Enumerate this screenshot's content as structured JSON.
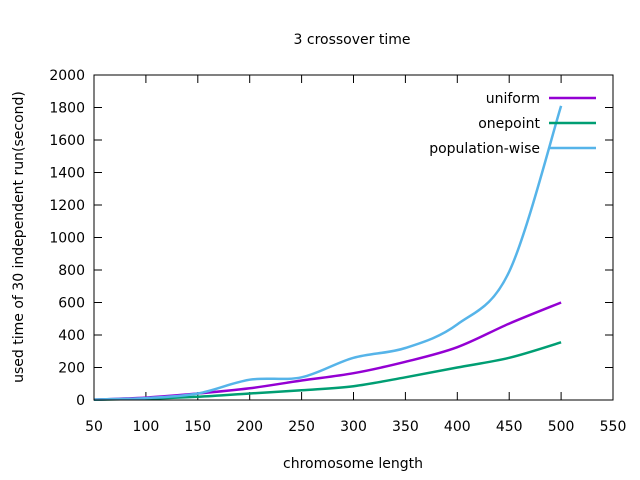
{
  "chart_data": {
    "type": "line",
    "title": "3 crossover time",
    "xlabel": "chromosome length",
    "ylabel": "used time of 30 independent run(second)",
    "xlim": [
      50,
      550
    ],
    "ylim": [
      0,
      2000
    ],
    "x_ticks": [
      50,
      100,
      150,
      200,
      250,
      300,
      350,
      400,
      450,
      500,
      550
    ],
    "y_ticks": [
      0,
      200,
      400,
      600,
      800,
      1000,
      1200,
      1400,
      1600,
      1800,
      2000
    ],
    "legend_position": "top-right",
    "grid": false,
    "x": [
      50,
      100,
      150,
      200,
      250,
      300,
      350,
      400,
      450,
      500
    ],
    "series": [
      {
        "name": "uniform",
        "color": "#9400d3",
        "values": [
          2,
          15,
          40,
          72,
          120,
          165,
          235,
          325,
          470,
          600
        ]
      },
      {
        "name": "onepoint",
        "color": "#009e73",
        "values": [
          1,
          8,
          20,
          40,
          60,
          85,
          140,
          200,
          260,
          355
        ]
      },
      {
        "name": "population-wise",
        "color": "#56b4e9",
        "values": [
          3,
          12,
          40,
          125,
          140,
          260,
          320,
          465,
          790,
          1810
        ]
      }
    ]
  }
}
